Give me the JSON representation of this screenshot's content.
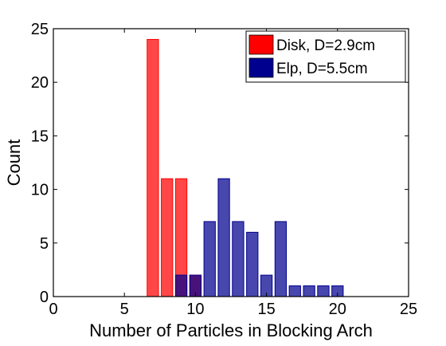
{
  "chart_data": {
    "type": "bar",
    "xlabel": "Number of Particles in Blocking Arch",
    "ylabel": "Count",
    "xlim": [
      0,
      25
    ],
    "ylim": [
      0,
      25
    ],
    "xticks": [
      "0",
      "5",
      "10",
      "15",
      "20",
      "25"
    ],
    "yticks": [
      "0",
      "5",
      "10",
      "15",
      "20",
      "25"
    ],
    "grid": false,
    "legend_position": "top-right",
    "series": [
      {
        "name": "Disk, D=2.9cm",
        "color": "#ff0000",
        "x": [
          7,
          8,
          9,
          10
        ],
        "values": [
          24,
          11,
          11,
          2
        ]
      },
      {
        "name": "Elp, D=5.5cm",
        "color": "#00008f",
        "x": [
          9,
          10,
          11,
          12,
          13,
          14,
          15,
          16,
          17,
          18,
          19,
          20
        ],
        "values": [
          2,
          2,
          7,
          11,
          7,
          6,
          2,
          7,
          1,
          1,
          1,
          1
        ]
      }
    ]
  }
}
